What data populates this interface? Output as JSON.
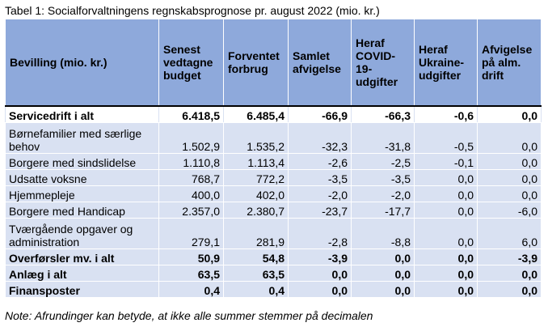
{
  "caption": "Tabel 1: Socialforvaltningens regnskabsprognose pr. august 2022 (mio. kr.)",
  "columns": [
    "Bevilling (mio. kr.)",
    "Senest vedtagne budget",
    "Forventet forbrug",
    "Samlet afvigelse",
    "Heraf COVID-19-udgifter",
    "Heraf Ukraine-udgifter",
    "Afvigelse på alm. drift"
  ],
  "rows": [
    [
      "Servicedrift i alt",
      "6.418,5",
      "6.485,4",
      "-66,9",
      "-66,3",
      "-0,6",
      "0,0"
    ],
    [
      "Børnefamilier med særlige behov",
      "1.502,9",
      "1.535,2",
      "-32,3",
      "-31,8",
      "-0,5",
      "0,0"
    ],
    [
      "Borgere med sindslidelse",
      "1.110,8",
      "1.113,4",
      "-2,6",
      "-2,5",
      "-0,1",
      "0,0"
    ],
    [
      "Udsatte voksne",
      "768,7",
      "772,2",
      "-3,5",
      "-3,5",
      "0,0",
      "0,0"
    ],
    [
      "Hjemmepleje",
      "400,0",
      "402,0",
      "-2,0",
      "-2,0",
      "0,0",
      "0,0"
    ],
    [
      "Borgere med Handicap",
      "2.357,0",
      "2.380,7",
      "-23,7",
      "-17,7",
      "0,0",
      "-6,0"
    ],
    [
      "Tværgående opgaver og administration",
      "279,1",
      "281,9",
      "-2,8",
      "-8,8",
      "0,0",
      "6,0"
    ],
    [
      "Overførsler mv. i alt",
      "50,9",
      "54,8",
      "-3,9",
      "0,0",
      "0,0",
      "-3,9"
    ],
    [
      "Anlæg i alt",
      "63,5",
      "63,5",
      "0,0",
      "0,0",
      "0,0",
      "0,0"
    ],
    [
      "Finansposter",
      "0,4",
      "0,4",
      "0,0",
      "0,0",
      "0,0",
      "0,0"
    ]
  ],
  "note": "Note: Afrundinger kan betyde, at ikke alle summer stemmer på decimalen"
}
